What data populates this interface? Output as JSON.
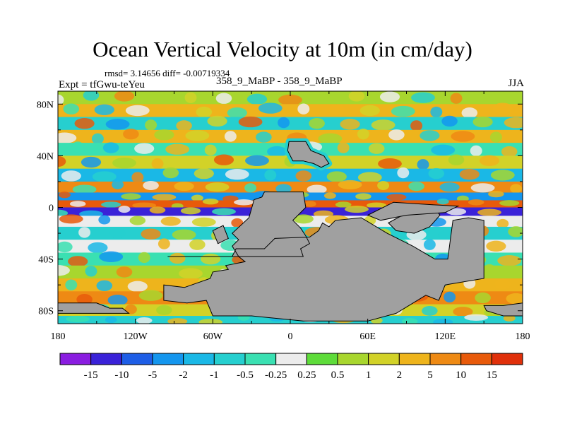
{
  "chart_data": {
    "type": "heatmap",
    "title": "Ocean Vertical Velocity at 10m (in cm/day)",
    "stats_text": "rmsd= 3.14656 diff= -0.00719334",
    "left_label": "Expt = tfGwu-teYeu",
    "center_label": "358_9_MaBP - 358_9_MaBP",
    "right_label": "JJA",
    "xlim": [
      -180,
      180
    ],
    "ylim": [
      -90,
      90
    ],
    "x_ticks": [
      {
        "value": -180,
        "label": "180"
      },
      {
        "value": -120,
        "label": "120W"
      },
      {
        "value": -60,
        "label": "60W"
      },
      {
        "value": 0,
        "label": "0"
      },
      {
        "value": 60,
        "label": "60E"
      },
      {
        "value": 120,
        "label": "120E"
      },
      {
        "value": 180,
        "label": "180"
      }
    ],
    "y_ticks": [
      {
        "value": 80,
        "label": "80N"
      },
      {
        "value": 40,
        "label": "40N"
      },
      {
        "value": 0,
        "label": "0"
      },
      {
        "value": -40,
        "label": "40S"
      },
      {
        "value": -80,
        "label": "80S"
      }
    ],
    "colorbar": {
      "levels": [
        "-15",
        "-10",
        "-5",
        "-2",
        "-1",
        "-0.5",
        "-0.25",
        "0.25",
        "0.5",
        "1",
        "2",
        "5",
        "10",
        "15"
      ],
      "colors": [
        "#8a1de0",
        "#3a22d8",
        "#1e5ee6",
        "#1496ee",
        "#1ab8e6",
        "#26cfcf",
        "#3ae0b2",
        "#ececec",
        "#5edc3a",
        "#a8d62e",
        "#d2d228",
        "#eeb41c",
        "#ee8a14",
        "#e85a0a",
        "#e0300a"
      ]
    },
    "land_color": "#a0a0a0",
    "zonal_bands": [
      {
        "lat": 85,
        "level": "0.5"
      },
      {
        "lat": 75,
        "level": "2"
      },
      {
        "lat": 65,
        "level": "-1"
      },
      {
        "lat": 55,
        "level": "2"
      },
      {
        "lat": 45,
        "level": "-0.5"
      },
      {
        "lat": 35,
        "level": "1"
      },
      {
        "lat": 25,
        "level": "-2"
      },
      {
        "lat": 15,
        "level": "5"
      },
      {
        "lat": 8,
        "level": "-5"
      },
      {
        "lat": 3,
        "level": "10"
      },
      {
        "lat": -3,
        "level": "-15"
      },
      {
        "lat": -10,
        "level": "-0.25"
      },
      {
        "lat": -20,
        "level": "-1"
      },
      {
        "lat": -30,
        "level": "-0.25"
      },
      {
        "lat": -40,
        "level": "-0.5"
      },
      {
        "lat": -50,
        "level": "0.5"
      },
      {
        "lat": -60,
        "level": "2"
      },
      {
        "lat": -70,
        "level": "5"
      },
      {
        "lat": -80,
        "level": "1"
      },
      {
        "lat": -88,
        "level": "-1"
      }
    ],
    "land_masses": [
      {
        "name": "Pangea",
        "lon": [
          -95,
          -45,
          -42,
          -20,
          -12,
          15,
          22,
          25,
          30,
          35,
          55,
          75,
          95,
          112,
          122,
          126,
          138,
          150,
          150,
          120,
          115,
          105,
          82,
          60,
          38,
          10,
          -30,
          -60,
          -65,
          -80,
          -98,
          -98,
          -82,
          -62,
          -60,
          -48,
          -50,
          -35,
          -40,
          -45,
          -40,
          -45,
          -32,
          -28,
          -22,
          -20,
          10,
          12,
          2,
          8,
          12,
          15,
          8,
          10
        ],
        "lat": [
          -38,
          -38,
          -32,
          -32,
          -24,
          -23,
          -18,
          -12,
          -15,
          -10,
          -8,
          -20,
          -30,
          -40,
          -40,
          -10,
          -8,
          -10,
          -55,
          -60,
          -72,
          -68,
          -82,
          -88,
          -88,
          -88,
          -84,
          -84,
          -72,
          -74,
          -72,
          -60,
          -62,
          -55,
          -50,
          -48,
          -45,
          -42,
          -38,
          -30,
          -25,
          -20,
          -8,
          6,
          8,
          12,
          12,
          0,
          -10,
          -16,
          -22,
          -28,
          -32,
          -38
        ]
      },
      {
        "name": "Northern block",
        "lon": [
          -1,
          12,
          16,
          26,
          30,
          24,
          18,
          10,
          2,
          -2
        ],
        "lat": [
          51,
          51,
          44,
          40,
          34,
          31,
          34,
          36,
          36,
          44
        ],
        "ring": "-1"
      },
      {
        "name": "Far-east spur",
        "lon": [
          98,
          110,
          116,
          108,
          96,
          82,
          76
        ],
        "lat": [
          0,
          2,
          -6,
          -15,
          -20,
          -18,
          -12
        ]
      },
      {
        "name": "Western island",
        "lon": [
          -60,
          -52,
          -48,
          -56
        ],
        "lat": [
          -18,
          -14,
          -24,
          -28
        ]
      },
      {
        "name": "Strip",
        "lon": [
          80,
          110,
          130,
          120,
          90,
          70,
          60
        ],
        "lat": [
          4,
          2,
          1,
          -4,
          -6,
          -10,
          -6
        ]
      },
      {
        "name": "Antarctic west",
        "lon": [
          -180,
          -150,
          -140,
          -130,
          -125,
          -180
        ],
        "lat": [
          -74,
          -74,
          -78,
          -78,
          -82,
          -82
        ]
      },
      {
        "name": "Antarctic east",
        "lon": [
          150,
          165,
          180,
          180,
          165,
          152
        ],
        "lat": [
          -76,
          -76,
          -74,
          -84,
          -84,
          -80
        ]
      }
    ]
  }
}
